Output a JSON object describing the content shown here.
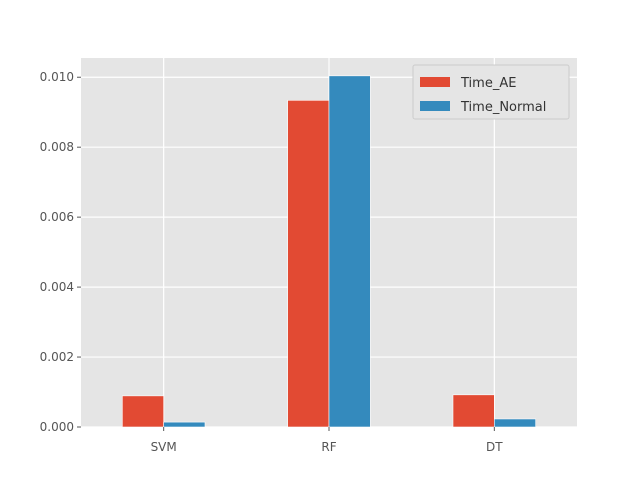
{
  "chart_data": {
    "type": "bar",
    "categories": [
      "SVM",
      "RF",
      "DT"
    ],
    "series": [
      {
        "name": "Time_AE",
        "color": "#E24A33",
        "values": [
          0.00089,
          0.00934,
          0.00092
        ]
      },
      {
        "name": "Time_Normal",
        "color": "#348ABD",
        "values": [
          0.00014,
          0.01004,
          0.00023
        ]
      }
    ],
    "title": "",
    "xlabel": "",
    "ylabel": "",
    "ylim": [
      0,
      0.01055
    ],
    "yticks": [
      0.0,
      0.002,
      0.004,
      0.006,
      0.008,
      0.01
    ],
    "ytick_labels": [
      "0.000",
      "0.002",
      "0.004",
      "0.006",
      "0.008",
      "0.010"
    ],
    "grid": true,
    "legend_position": "top-right",
    "background_color": "#E5E5E5"
  }
}
